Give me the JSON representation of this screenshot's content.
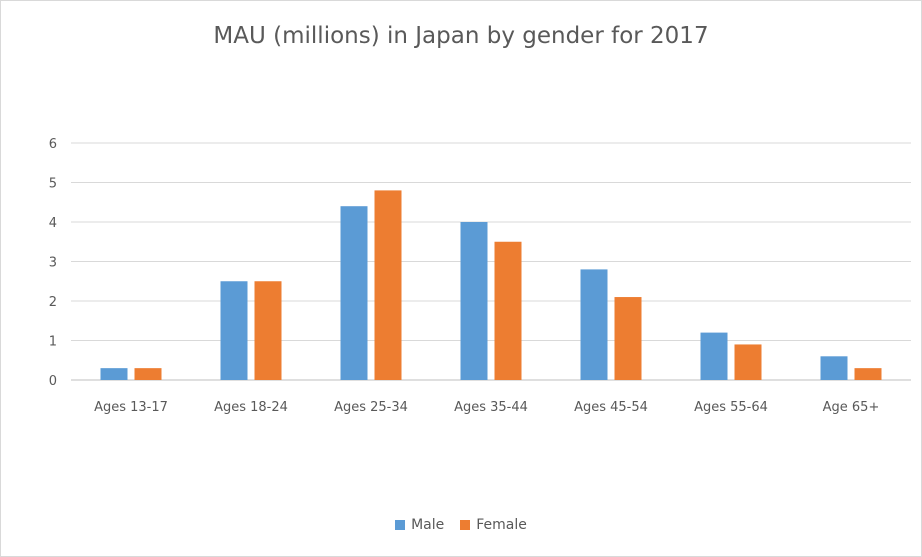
{
  "chart_data": {
    "type": "bar",
    "title": "MAU (millions) in Japan by gender for 2017",
    "xlabel": "",
    "ylabel": "",
    "categories": [
      "Ages 13-17",
      "Ages 18-24",
      "Ages 25-34",
      "Ages 35-44",
      "Ages 45-54",
      "Ages 55-64",
      "Age 65+"
    ],
    "series": [
      {
        "name": "Male",
        "color": "#5b9bd5",
        "values": [
          0.3,
          2.5,
          4.4,
          4.0,
          2.8,
          1.2,
          0.6
        ]
      },
      {
        "name": "Female",
        "color": "#ed7d31",
        "values": [
          0.3,
          2.5,
          4.8,
          3.5,
          2.1,
          0.9,
          0.3
        ]
      }
    ],
    "ylim": [
      0,
      6
    ],
    "yticks": [
      "0",
      "1",
      "2",
      "3",
      "4",
      "5",
      "6"
    ],
    "grid": true,
    "legend": "bottom"
  }
}
